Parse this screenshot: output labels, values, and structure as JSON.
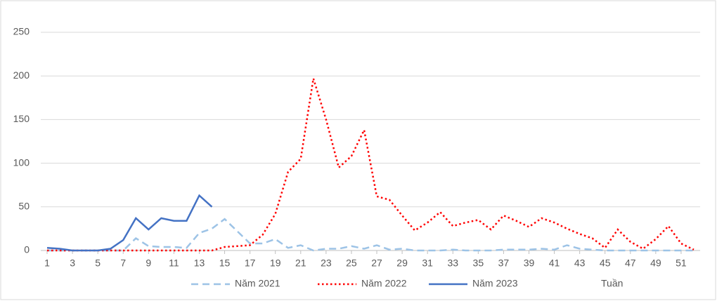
{
  "chart_data": {
    "type": "line",
    "x": [
      1,
      2,
      3,
      4,
      5,
      6,
      7,
      8,
      9,
      10,
      11,
      12,
      13,
      14,
      15,
      16,
      17,
      18,
      19,
      20,
      21,
      22,
      23,
      24,
      25,
      26,
      27,
      28,
      29,
      30,
      31,
      32,
      33,
      34,
      35,
      36,
      37,
      38,
      39,
      40,
      41,
      42,
      43,
      44,
      45,
      46,
      47,
      48,
      49,
      50,
      51,
      52
    ],
    "series": [
      {
        "name": "Năm 2021",
        "color": "#9dc3e6",
        "dash": "dashed",
        "values": [
          0,
          0,
          0,
          0,
          0,
          0,
          0,
          14,
          5,
          4,
          4,
          3,
          20,
          25,
          36,
          22,
          8,
          8,
          13,
          3,
          6,
          0,
          2,
          2,
          5,
          2,
          6,
          1,
          2,
          0,
          0,
          0,
          1,
          0,
          0,
          0,
          1,
          1,
          1,
          2,
          1,
          6,
          2,
          1,
          0,
          0,
          0,
          0,
          0,
          0,
          0,
          0
        ]
      },
      {
        "name": "Năm 2022",
        "color": "#ff0000",
        "dash": "dotted",
        "values": [
          0,
          0,
          0,
          0,
          0,
          0,
          0,
          0,
          0,
          0,
          0,
          0,
          0,
          0,
          4,
          5,
          6,
          18,
          42,
          90,
          105,
          197,
          150,
          95,
          108,
          138,
          62,
          58,
          40,
          23,
          32,
          44,
          28,
          32,
          35,
          24,
          40,
          34,
          27,
          37,
          32,
          25,
          19,
          14,
          3,
          24,
          10,
          2,
          13,
          28,
          8,
          1
        ]
      },
      {
        "name": "Năm 2023",
        "color": "#4472c4",
        "dash": "solid",
        "values": [
          3,
          2,
          0,
          0,
          0,
          2,
          12,
          37,
          24,
          37,
          34,
          34,
          63,
          50,
          null,
          null,
          null,
          null,
          null,
          null,
          null,
          null,
          null,
          null,
          null,
          null,
          null,
          null,
          null,
          null,
          null,
          null,
          null,
          null,
          null,
          null,
          null,
          null,
          null,
          null,
          null,
          null,
          null,
          null,
          null,
          null,
          null,
          null,
          null,
          null,
          null,
          null
        ]
      }
    ],
    "x_label": "Tuần",
    "xlim": [
      0.5,
      52.5
    ],
    "xticks": [
      1,
      3,
      5,
      7,
      9,
      11,
      13,
      15,
      17,
      19,
      21,
      23,
      25,
      27,
      29,
      31,
      33,
      35,
      37,
      39,
      41,
      43,
      45,
      47,
      49,
      51
    ],
    "ylim": [
      0,
      250
    ],
    "yticks": [
      0,
      50,
      100,
      150,
      200,
      250
    ],
    "grid": true,
    "legend": "bottom"
  }
}
